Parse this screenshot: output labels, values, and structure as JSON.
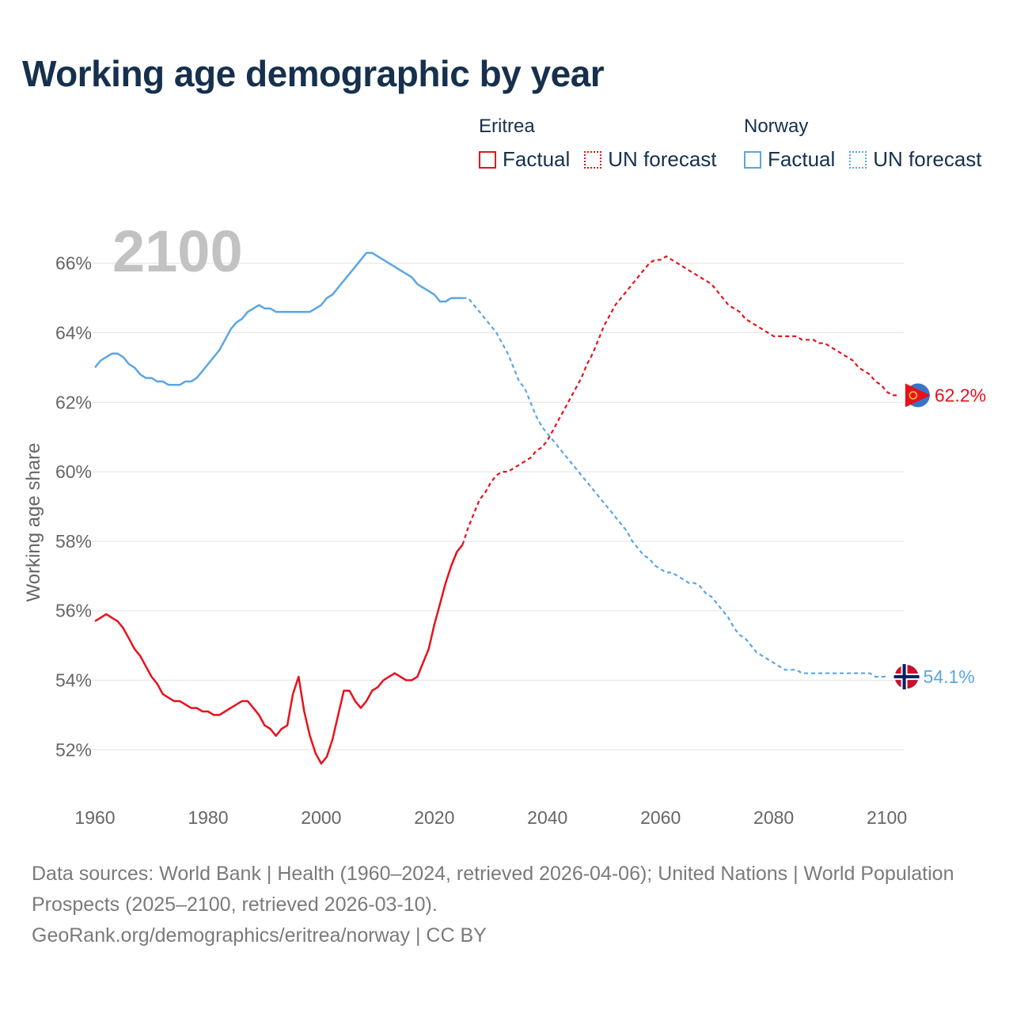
{
  "title": "Working age demographic by year",
  "legend": {
    "groups": [
      {
        "country": "Eritrea",
        "factual_label": "Factual",
        "forecast_label": "UN forecast",
        "color": "#e8111c"
      },
      {
        "country": "Norway",
        "factual_label": "Factual",
        "forecast_label": "UN forecast",
        "color": "#5aa6e6"
      }
    ]
  },
  "footer": {
    "sources": "Data sources: World Bank | Health (1960–2024, retrieved 2026-04-06); United Nations | World Population Prospects (2025–2100, retrieved 2026-03-10).",
    "credit": "GeoRank.org/demographics/eritrea/norway | CC BY"
  },
  "chart_data": {
    "type": "line",
    "title": "Working age demographic by year",
    "year_watermark": "2100",
    "xlabel": "",
    "ylabel": "Working age share",
    "xlim": [
      1960,
      2103
    ],
    "ylim": [
      50.8,
      67.2
    ],
    "x_ticks": [
      1960,
      1980,
      2000,
      2020,
      2040,
      2060,
      2080,
      2100
    ],
    "y_ticks": [
      52,
      54,
      56,
      58,
      60,
      62,
      64,
      66
    ],
    "y_tick_suffix": "%",
    "grid": true,
    "forecast_start_year": 2025,
    "series": [
      {
        "name": "Eritrea",
        "color": "#e8111c",
        "end_label": "62.2%",
        "flag": "eritrea",
        "x_start": 1960,
        "values": [
          55.7,
          55.8,
          55.9,
          55.8,
          55.7,
          55.5,
          55.2,
          54.9,
          54.7,
          54.4,
          54.1,
          53.9,
          53.6,
          53.5,
          53.4,
          53.4,
          53.3,
          53.2,
          53.2,
          53.1,
          53.1,
          53.0,
          53.0,
          53.1,
          53.2,
          53.3,
          53.4,
          53.4,
          53.2,
          53.0,
          52.7,
          52.6,
          52.4,
          52.6,
          52.7,
          53.6,
          54.1,
          53.1,
          52.4,
          51.9,
          51.6,
          51.8,
          52.3,
          53.0,
          53.7,
          53.7,
          53.4,
          53.2,
          53.4,
          53.7,
          53.8,
          54.0,
          54.1,
          54.2,
          54.1,
          54.0,
          54.0,
          54.1,
          54.5,
          54.9,
          55.6,
          56.2,
          56.8,
          57.3,
          57.7,
          57.9,
          58.4,
          58.8,
          59.2,
          59.4,
          59.7,
          59.9,
          60.0,
          60.0,
          60.1,
          60.2,
          60.3,
          60.4,
          60.6,
          60.7,
          60.9,
          61.2,
          61.5,
          61.8,
          62.1,
          62.4,
          62.7,
          63.1,
          63.4,
          63.8,
          64.2,
          64.5,
          64.8,
          65.0,
          65.2,
          65.4,
          65.6,
          65.8,
          66.0,
          66.1,
          66.1,
          66.2,
          66.1,
          66.0,
          65.9,
          65.8,
          65.7,
          65.6,
          65.5,
          65.4,
          65.2,
          65.0,
          64.8,
          64.7,
          64.6,
          64.4,
          64.3,
          64.2,
          64.1,
          64.0,
          63.9,
          63.9,
          63.9,
          63.9,
          63.9,
          63.8,
          63.8,
          63.8,
          63.7,
          63.7,
          63.6,
          63.5,
          63.4,
          63.3,
          63.2,
          63.0,
          62.9,
          62.8,
          62.6,
          62.5,
          62.3,
          62.2,
          62.2
        ]
      },
      {
        "name": "Norway",
        "color": "#5aa6e6",
        "end_label": "54.1%",
        "flag": "norway",
        "x_start": 1960,
        "values": [
          63.0,
          63.2,
          63.3,
          63.4,
          63.4,
          63.3,
          63.1,
          63.0,
          62.8,
          62.7,
          62.7,
          62.6,
          62.6,
          62.5,
          62.5,
          62.5,
          62.6,
          62.6,
          62.7,
          62.9,
          63.1,
          63.3,
          63.5,
          63.8,
          64.1,
          64.3,
          64.4,
          64.6,
          64.7,
          64.8,
          64.7,
          64.7,
          64.6,
          64.6,
          64.6,
          64.6,
          64.6,
          64.6,
          64.6,
          64.7,
          64.8,
          65.0,
          65.1,
          65.3,
          65.5,
          65.7,
          65.9,
          66.1,
          66.3,
          66.3,
          66.2,
          66.1,
          66.0,
          65.9,
          65.8,
          65.7,
          65.6,
          65.4,
          65.3,
          65.2,
          65.1,
          64.9,
          64.9,
          65.0,
          65.0,
          65.0,
          65.0,
          64.8,
          64.6,
          64.4,
          64.2,
          64.0,
          63.7,
          63.4,
          63.0,
          62.6,
          62.4,
          62.0,
          61.6,
          61.3,
          61.1,
          60.9,
          60.7,
          60.5,
          60.3,
          60.1,
          59.9,
          59.7,
          59.5,
          59.3,
          59.1,
          58.9,
          58.7,
          58.5,
          58.3,
          58.0,
          57.8,
          57.6,
          57.5,
          57.3,
          57.2,
          57.1,
          57.1,
          57.0,
          56.9,
          56.8,
          56.8,
          56.7,
          56.5,
          56.4,
          56.2,
          56.0,
          55.8,
          55.5,
          55.3,
          55.2,
          55.0,
          54.8,
          54.7,
          54.6,
          54.5,
          54.4,
          54.3,
          54.3,
          54.3,
          54.2,
          54.2,
          54.2,
          54.2,
          54.2,
          54.2,
          54.2,
          54.2,
          54.2,
          54.2,
          54.2,
          54.2,
          54.2,
          54.1,
          54.1,
          54.1
        ]
      }
    ]
  }
}
